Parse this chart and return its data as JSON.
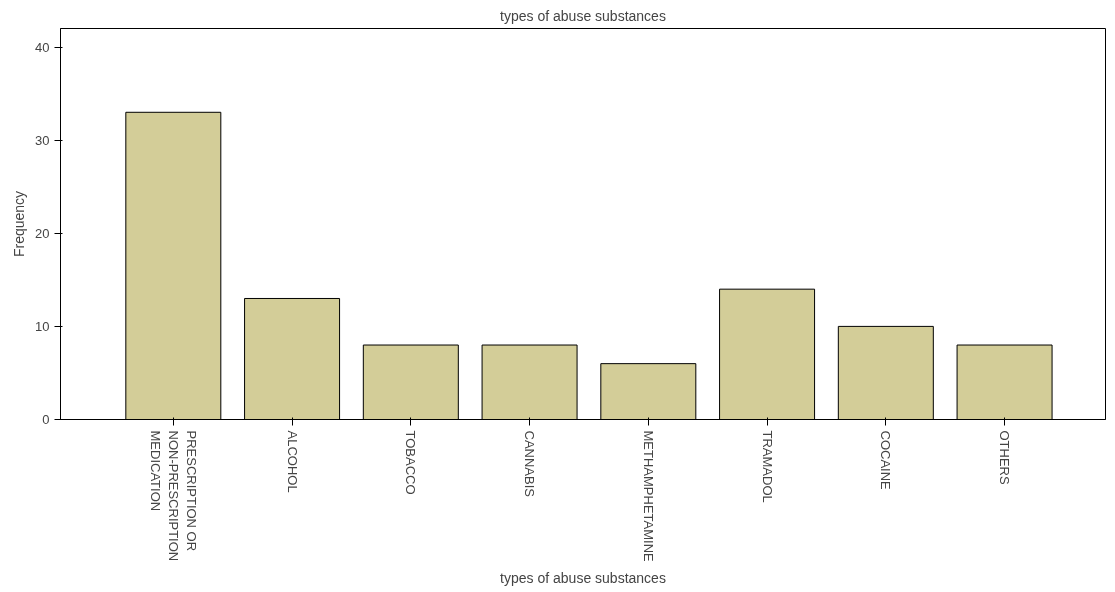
{
  "chart_data": {
    "type": "bar",
    "title": "types of abuse substances",
    "xlabel": "types of abuse substances",
    "ylabel": "Frequency",
    "categories": [
      "PRESCRIPTION OR NON-PRESCRIPTION MEDICATION",
      "ALCOHOL",
      "TOBACCO",
      "CANNABIS",
      "METHAMPHETAMINE",
      "TRAMADOL",
      "COCAINE",
      "OTHERS"
    ],
    "values": [
      33,
      13,
      8,
      8,
      6,
      14,
      10,
      8
    ],
    "color": "#d3cd98",
    "ylim": [
      0,
      42
    ],
    "yticks": [
      0,
      10,
      20,
      30,
      40
    ],
    "grid": false
  }
}
